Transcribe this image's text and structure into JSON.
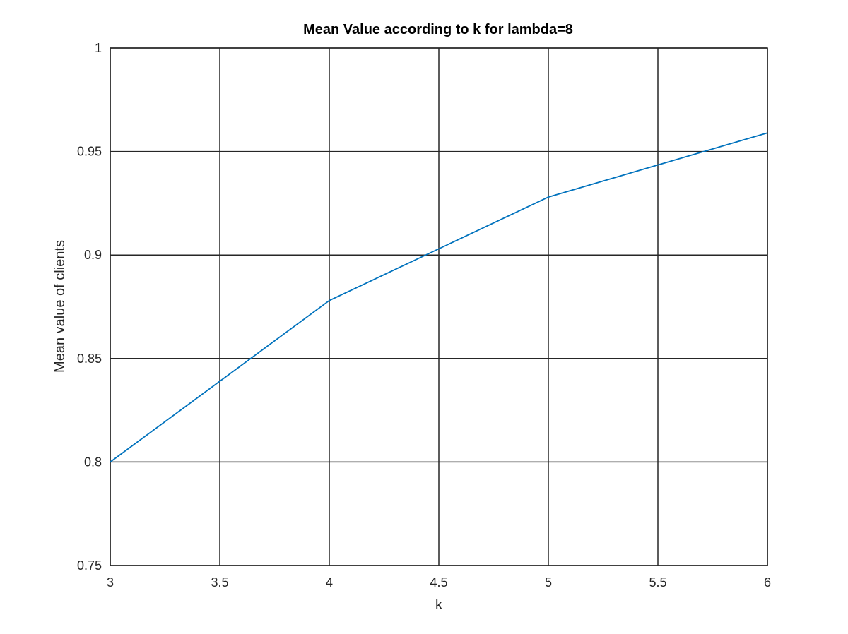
{
  "chart_data": {
    "type": "line",
    "title": "Mean Value according to k for lambda=8",
    "xlabel": "k",
    "ylabel": "Mean value of clients",
    "xlim": [
      3,
      6
    ],
    "ylim": [
      0.75,
      1
    ],
    "xticks": [
      3,
      3.5,
      4,
      4.5,
      5,
      5.5,
      6
    ],
    "xtick_labels": [
      "3",
      "3.5",
      "4",
      "4.5",
      "5",
      "5.5",
      "6"
    ],
    "yticks": [
      0.75,
      0.8,
      0.85,
      0.9,
      0.95,
      1
    ],
    "ytick_labels": [
      "0.75",
      "0.8",
      "0.85",
      "0.9",
      "0.95",
      "1"
    ],
    "grid": true,
    "legend": "none",
    "series": [
      {
        "x": [
          3,
          4,
          5,
          6
        ],
        "y": [
          0.8,
          0.878,
          0.928,
          0.959
        ],
        "color": "#0072BD"
      }
    ]
  }
}
